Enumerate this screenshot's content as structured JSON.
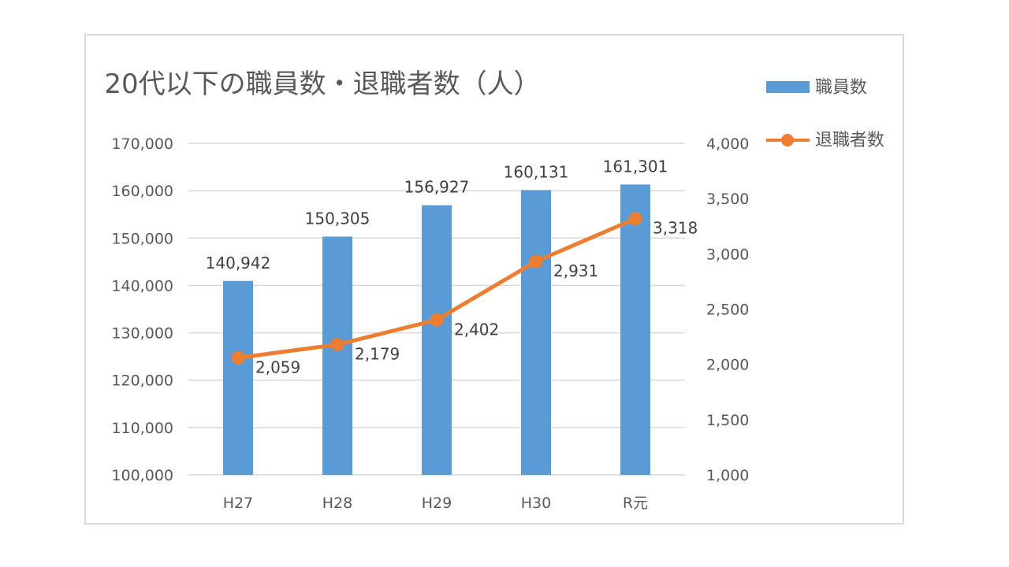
{
  "chart_data": {
    "type": "bar+line",
    "title": "20代以下の職員数・退職者数（人）",
    "categories": [
      "H27",
      "H28",
      "H29",
      "H30",
      "R元"
    ],
    "series": [
      {
        "name": "職員数",
        "type": "bar",
        "axis": "left",
        "values": [
          140942,
          150305,
          156927,
          160131,
          161301
        ],
        "labels": [
          "140,942",
          "150,305",
          "156,927",
          "160,131",
          "161,301"
        ],
        "color": "#5b9bd5"
      },
      {
        "name": "退職者数",
        "type": "line",
        "axis": "right",
        "values": [
          2059,
          2179,
          2402,
          2931,
          3318
        ],
        "labels": [
          "2,059",
          "2,179",
          "2,402",
          "2,931",
          "3,318"
        ],
        "color": "#ed7d31"
      }
    ],
    "y_left": {
      "range": [
        100000,
        170000
      ],
      "ticks": [
        "100,000",
        "110,000",
        "120,000",
        "130,000",
        "140,000",
        "150,000",
        "160,000",
        "170,000"
      ]
    },
    "y_right": {
      "range": [
        1000,
        4000
      ],
      "ticks": [
        "1,000",
        "1,500",
        "2,000",
        "2,500",
        "3,000",
        "3,500",
        "4,000"
      ]
    },
    "grid": true,
    "legend": "top-right"
  }
}
